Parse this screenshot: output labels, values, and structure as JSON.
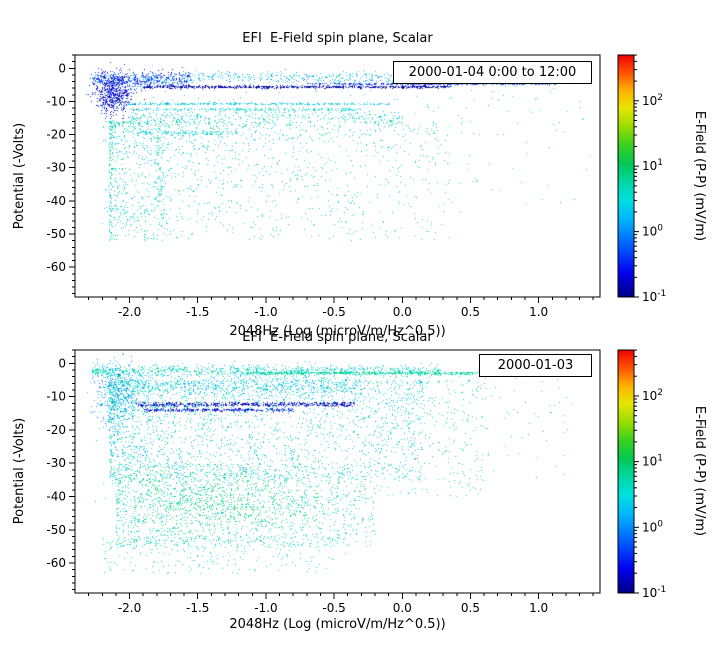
{
  "figure": {
    "background": "#ffffff"
  },
  "chart_data": [
    {
      "type": "scatter",
      "title": "EFI  E-Field spin plane, Scalar",
      "legend": "2000-01-04 0:00 to 12:00",
      "xlabel": "2048Hz (Log (microV/m/Hz^0.5))",
      "ylabel": "Potential (-Volts)",
      "xlim": [
        -2.4,
        1.45
      ],
      "ylim": [
        -69,
        4
      ],
      "xticks": [
        -2.0,
        -1.5,
        -1.0,
        -0.5,
        0.0,
        0.5,
        1.0
      ],
      "xtick_labels": [
        "-2.0",
        "-1.5",
        "-1.0",
        "-0.5",
        "0.0",
        "0.5",
        "1.0"
      ],
      "yticks": [
        0,
        -10,
        -20,
        -30,
        -40,
        -50,
        -60
      ],
      "ytick_labels": [
        "0",
        "-10",
        "-20",
        "-30",
        "-40",
        "-50",
        "-60"
      ],
      "xminor_step": 0.1,
      "yminor_step": 2,
      "seed": 20000104,
      "colorbar": {
        "label": "E-Field (P-P) (mV/m)",
        "scale": "log",
        "range_log10": [
          -1,
          2.7
        ],
        "tick_exponents": [
          2,
          1,
          0,
          -1
        ],
        "stops": [
          [
            0,
            "#000085"
          ],
          [
            0.1,
            "#0000f0"
          ],
          [
            0.22,
            "#0064ff"
          ],
          [
            0.32,
            "#00b4ff"
          ],
          [
            0.4,
            "#00e0e0"
          ],
          [
            0.48,
            "#00d8a0"
          ],
          [
            0.55,
            "#00c855"
          ],
          [
            0.63,
            "#3cd01e"
          ],
          [
            0.7,
            "#96dc00"
          ],
          [
            0.78,
            "#e6e600"
          ],
          [
            0.85,
            "#ffb400"
          ],
          [
            0.92,
            "#ff5a00"
          ],
          [
            1,
            "#f00000"
          ]
        ]
      },
      "clusters": [
        {
          "shape": "band",
          "x": [
            -2.28,
            -1.55
          ],
          "ymean": -3.2,
          "ysd": 1.1,
          "px": 1,
          "count": 500,
          "v": [
            -0.9,
            0.2
          ]
        },
        {
          "shape": "band",
          "x": [
            -1.6,
            0.9
          ],
          "ymean": -2.6,
          "ysd": 0.9,
          "px": 1,
          "count": 450,
          "v": [
            -0.2,
            0.9
          ]
        },
        {
          "shape": "hline",
          "x": [
            -1.9,
            0.35
          ],
          "y": -5.5,
          "jitter": 0.35,
          "count": 700,
          "v": [
            -1.0,
            -0.75
          ]
        },
        {
          "shape": "hline",
          "x": [
            -0.7,
            1.12
          ],
          "y": -4.6,
          "jitter": 0.25,
          "count": 320,
          "v": [
            -0.55,
            -0.25
          ]
        },
        {
          "shape": "blob",
          "cx": -2.12,
          "cy": -7.5,
          "sx": 0.07,
          "sy": 3.0,
          "count": 550,
          "v": [
            -1.0,
            -0.4
          ]
        },
        {
          "shape": "hline",
          "x": [
            -2.05,
            -0.1
          ],
          "y": -10.6,
          "jitter": 0.3,
          "count": 300,
          "v": [
            0.0,
            0.7
          ]
        },
        {
          "shape": "hline",
          "x": [
            -2.0,
            -0.3
          ],
          "y": -12.3,
          "jitter": 0.4,
          "count": 220,
          "v": [
            0.2,
            0.9
          ]
        },
        {
          "shape": "band",
          "x": [
            -2.0,
            0.0
          ],
          "ymean": -14.8,
          "ysd": 1.2,
          "px": 1.3,
          "count": 350,
          "v": [
            0.1,
            1.0
          ]
        },
        {
          "shape": "hline",
          "x": [
            -1.95,
            -1.2
          ],
          "y": -19.5,
          "jitter": 0.6,
          "count": 120,
          "v": [
            0.2,
            0.8
          ]
        },
        {
          "shape": "blob",
          "cx": -1.78,
          "cy": -30,
          "sx": 0.03,
          "sy": 10,
          "count": 130,
          "v": [
            0.2,
            0.9
          ]
        },
        {
          "shape": "cloud",
          "x": [
            -2.15,
            0.35
          ],
          "y": [
            -16,
            -52
          ],
          "px": 1.8,
          "py": 1.6,
          "count": 1300,
          "v": [
            0.1,
            1.1
          ]
        },
        {
          "shape": "cloud",
          "x": [
            0.3,
            1.38
          ],
          "y": [
            -2,
            -42
          ],
          "px": 1,
          "py": 1.5,
          "count": 70,
          "v": [
            0.4,
            1.3
          ]
        },
        {
          "shape": "blob",
          "cx": -2.0,
          "cy": -44,
          "sx": 0.12,
          "sy": 2.0,
          "count": 45,
          "v": [
            0.3,
            0.9
          ]
        },
        {
          "shape": "cloud",
          "x": [
            -2.2,
            0.6
          ],
          "y": [
            -2,
            -46
          ],
          "px": 1.4,
          "py": 1.7,
          "count": 260,
          "v": [
            0.2,
            1.0
          ]
        }
      ]
    },
    {
      "type": "scatter",
      "title": "EFI  E-Field spin plane, Scalar",
      "legend": "2000-01-03",
      "xlabel": "2048Hz (Log (microV/m/Hz^0.5))",
      "ylabel": "Potential (-Volts)",
      "xlim": [
        -2.4,
        1.45
      ],
      "ylim": [
        -69,
        4
      ],
      "xticks": [
        -2.0,
        -1.5,
        -1.0,
        -0.5,
        0.0,
        0.5,
        1.0
      ],
      "xtick_labels": [
        "-2.0",
        "-1.5",
        "-1.0",
        "-0.5",
        "0.0",
        "0.5",
        "1.0"
      ],
      "yticks": [
        0,
        -10,
        -20,
        -30,
        -40,
        -50,
        -60
      ],
      "ytick_labels": [
        "0",
        "-10",
        "-20",
        "-30",
        "-40",
        "-50",
        "-60"
      ],
      "xminor_step": 0.1,
      "yminor_step": 2,
      "seed": 20000103,
      "colorbar": {
        "label": "E-Field (P-P) (mV/m)",
        "scale": "log",
        "range_log10": [
          -1,
          2.7
        ],
        "tick_exponents": [
          2,
          1,
          0,
          -1
        ],
        "stops": [
          [
            0,
            "#000085"
          ],
          [
            0.1,
            "#0000f0"
          ],
          [
            0.22,
            "#0064ff"
          ],
          [
            0.32,
            "#00b4ff"
          ],
          [
            0.4,
            "#00e0e0"
          ],
          [
            0.48,
            "#00d8a0"
          ],
          [
            0.55,
            "#00c855"
          ],
          [
            0.63,
            "#3cd01e"
          ],
          [
            0.7,
            "#96dc00"
          ],
          [
            0.78,
            "#e6e600"
          ],
          [
            0.85,
            "#ffb400"
          ],
          [
            0.92,
            "#ff5a00"
          ],
          [
            1,
            "#f00000"
          ]
        ]
      },
      "clusters": [
        {
          "shape": "band",
          "x": [
            -2.28,
            0.28
          ],
          "ymean": -2.2,
          "ysd": 0.9,
          "px": 1.2,
          "count": 900,
          "v": [
            0.2,
            1.0
          ]
        },
        {
          "shape": "hline",
          "x": [
            -1.15,
            0.55
          ],
          "y": -2.8,
          "jitter": 0.35,
          "count": 500,
          "v": [
            0.55,
            1.0
          ]
        },
        {
          "shape": "blob",
          "cx": -2.1,
          "cy": -9,
          "sx": 0.08,
          "sy": 5,
          "count": 400,
          "v": [
            -0.3,
            0.6
          ]
        },
        {
          "shape": "band",
          "x": [
            -2.1,
            -0.3
          ],
          "ymean": -6.5,
          "ysd": 1.5,
          "px": 1,
          "count": 600,
          "v": [
            0.0,
            0.8
          ]
        },
        {
          "shape": "hline",
          "x": [
            -1.95,
            -0.35
          ],
          "y": -12.2,
          "jitter": 0.55,
          "count": 550,
          "v": [
            -1.0,
            -0.6
          ]
        },
        {
          "shape": "hline",
          "x": [
            -1.9,
            -0.8
          ],
          "y": -13.9,
          "jitter": 0.4,
          "count": 300,
          "v": [
            -0.9,
            -0.5
          ]
        },
        {
          "shape": "cloud",
          "x": [
            -2.15,
            0.15
          ],
          "y": [
            -5,
            -35
          ],
          "px": 1.5,
          "py": 1.2,
          "count": 2200,
          "v": [
            0.0,
            1.0
          ]
        },
        {
          "shape": "cloud",
          "x": [
            -2.1,
            -0.2
          ],
          "y": [
            -30,
            -55
          ],
          "px": 1.2,
          "py": 1.0,
          "count": 1400,
          "v": [
            0.3,
            1.1
          ]
        },
        {
          "shape": "blob",
          "cx": -1.35,
          "cy": -42,
          "sx": 0.35,
          "sy": 5,
          "count": 600,
          "v": [
            0.6,
            1.2
          ]
        },
        {
          "shape": "cloud",
          "x": [
            -2.2,
            -0.5
          ],
          "y": [
            -52,
            -63
          ],
          "px": 1.1,
          "py": 1.2,
          "count": 250,
          "v": [
            0.3,
            1.0
          ]
        },
        {
          "shape": "cloud",
          "x": [
            0.15,
            1.25
          ],
          "y": [
            -2,
            -35
          ],
          "px": 1,
          "py": 1.5,
          "count": 90,
          "v": [
            0.4,
            1.2
          ]
        },
        {
          "shape": "cloud",
          "x": [
            -0.2,
            0.6
          ],
          "y": [
            -5,
            -40
          ],
          "px": 1.2,
          "py": 1.3,
          "count": 300,
          "v": [
            0.3,
            1.0
          ]
        }
      ]
    }
  ]
}
